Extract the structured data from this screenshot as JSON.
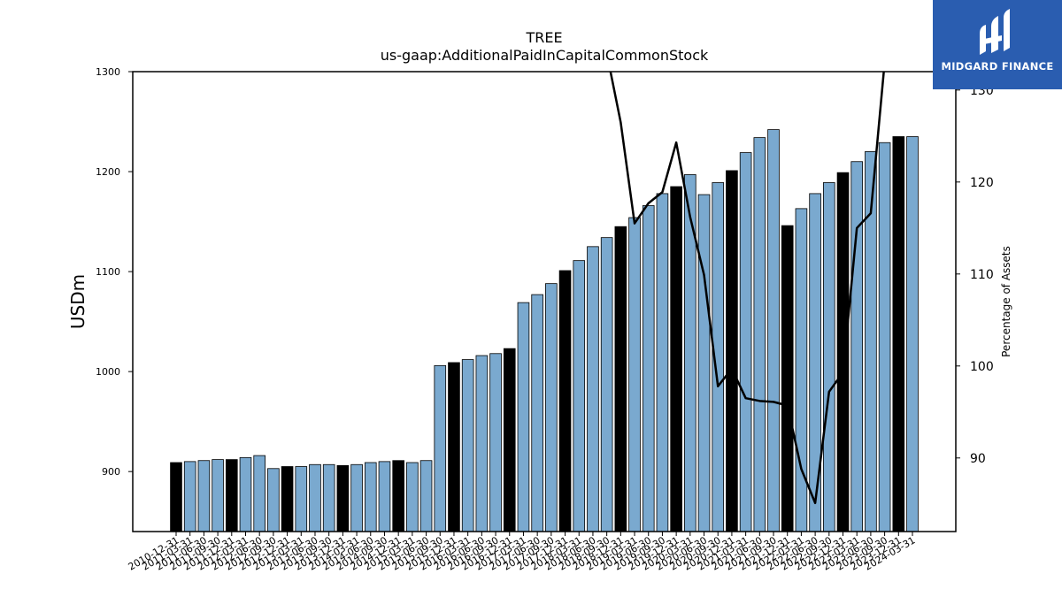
{
  "chart_data": {
    "type": "bar",
    "title": "TREE",
    "subtitle": "us-gaap:AdditionalPaidInCapitalCommonStock",
    "ylabel": "USDm",
    "y2label": "Percentage of Assets",
    "ylim": [
      840,
      1300
    ],
    "y2lim": [
      82,
      132
    ],
    "yticks": [
      900,
      1000,
      1100,
      1200,
      1300
    ],
    "y2ticks": [
      90,
      100,
      110,
      120,
      130
    ],
    "categories": [
      "2010-12-31",
      "2011-03-31",
      "2011-06-30",
      "2011-09-30",
      "2011-12-31",
      "2012-03-31",
      "2012-06-30",
      "2012-09-30",
      "2012-12-31",
      "2013-03-31",
      "2013-06-30",
      "2013-09-30",
      "2013-12-31",
      "2014-03-31",
      "2014-06-30",
      "2014-09-30",
      "2014-12-31",
      "2015-03-31",
      "2015-06-30",
      "2015-09-30",
      "2015-12-31",
      "2016-03-31",
      "2016-06-30",
      "2016-09-30",
      "2016-12-31",
      "2017-03-31",
      "2017-06-30",
      "2017-09-30",
      "2017-12-31",
      "2018-03-31",
      "2018-06-30",
      "2018-09-30",
      "2018-12-31",
      "2019-03-31",
      "2019-06-30",
      "2019-09-30",
      "2019-12-31",
      "2020-03-31",
      "2020-06-30",
      "2020-09-30",
      "2020-12-31",
      "2021-03-31",
      "2021-06-30",
      "2021-09-30",
      "2021-12-31",
      "2022-03-31",
      "2022-06-30",
      "2022-09-30",
      "2022-12-31",
      "2023-03-31",
      "2023-06-30",
      "2023-09-30",
      "2023-12-31",
      "2024-03-31"
    ],
    "series": [
      {
        "type": "bar",
        "values": [
          909,
          910,
          911,
          912,
          912,
          914,
          916,
          903,
          905,
          905,
          907,
          907,
          906,
          907,
          909,
          910,
          911,
          909,
          911,
          1006,
          1009,
          1012,
          1016,
          1018,
          1023,
          1069,
          1077,
          1088,
          1101,
          1111,
          1125,
          1134,
          1145,
          1154,
          1166,
          1178,
          1185,
          1197,
          1177,
          1189,
          1201,
          1219,
          1234,
          1242,
          1146,
          1163,
          1178,
          1189,
          1199,
          1210,
          1220,
          1229,
          1235,
          1235
        ],
        "colors": {
          "default": "#7aa9cf",
          "highlight": "#000000"
        },
        "highlight_months": [
          "12"
        ]
      },
      {
        "type": "line",
        "axis": "right",
        "color": "#000000",
        "values": [
          null,
          null,
          null,
          null,
          null,
          null,
          null,
          null,
          null,
          null,
          null,
          null,
          null,
          null,
          null,
          null,
          null,
          null,
          null,
          null,
          null,
          null,
          null,
          null,
          null,
          null,
          null,
          null,
          null,
          null,
          null,
          134,
          126.5,
          115.5,
          117.7,
          118.9,
          124.3,
          116.2,
          109.9,
          97.8,
          99.7,
          96.5,
          96.2,
          96.1,
          95.7,
          88.8,
          85.1,
          97.2,
          99.3,
          115.0,
          116.6,
          133,
          133.5,
          133.5
        ]
      }
    ]
  },
  "logo": {
    "text": "MIDGARD FINANCE",
    "bg": "#2a5db0"
  }
}
